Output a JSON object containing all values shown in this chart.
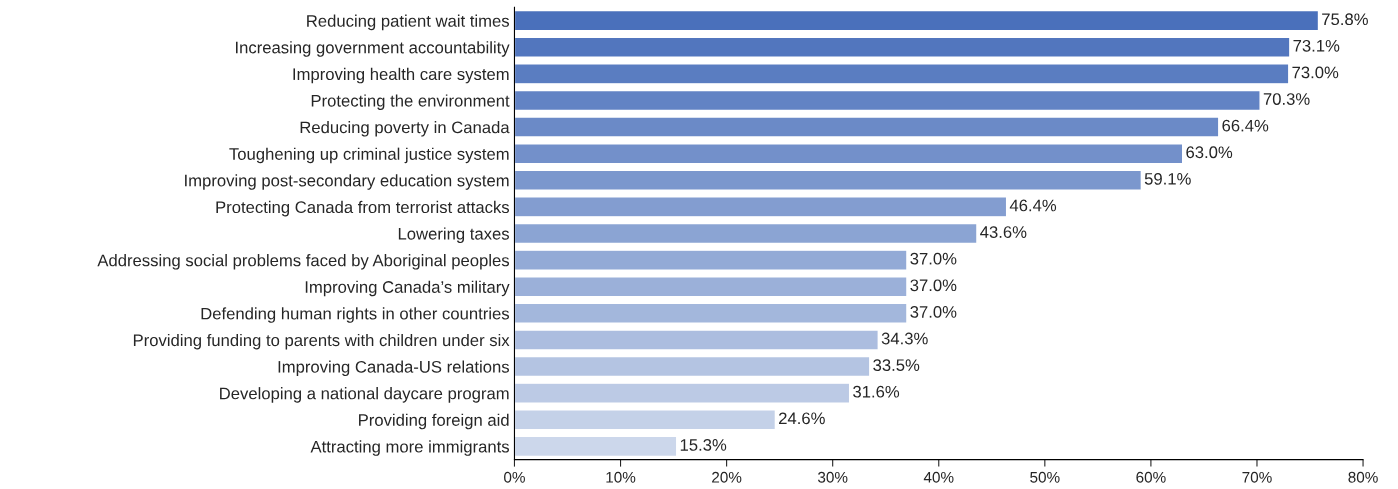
{
  "chart_data": {
    "type": "bar",
    "orientation": "horizontal",
    "categories": [
      "Reducing patient wait times",
      "Increasing government accountability",
      "Improving health care system",
      "Protecting the environment",
      "Reducing poverty in Canada",
      "Toughening up criminal justice system",
      "Improving post-secondary education system",
      "Protecting Canada from terrorist attacks",
      "Lowering taxes",
      "Addressing social problems faced by Aboriginal peoples",
      "Improving Canada’s military",
      "Defending human rights in other countries",
      "Providing funding to parents with children under six",
      "Improving Canada-US relations",
      "Developing a national daycare program",
      "Providing foreign aid",
      "Attracting more immigrants"
    ],
    "values": [
      75.8,
      73.1,
      73.0,
      70.3,
      66.4,
      63.0,
      59.1,
      46.4,
      43.6,
      37.0,
      37.0,
      37.0,
      34.3,
      33.5,
      31.6,
      24.6,
      15.3
    ],
    "value_labels": [
      "75.8%",
      "73.1%",
      "73.0%",
      "70.3%",
      "66.4%",
      "63.0%",
      "59.1%",
      "46.4%",
      "43.6%",
      "37.0%",
      "37.0%",
      "37.0%",
      "34.3%",
      "33.5%",
      "31.6%",
      "24.6%",
      "15.3%"
    ],
    "colors": [
      "#4a70bb",
      "#5276be",
      "#5a7dc1",
      "#6283c4",
      "#6b8ac7",
      "#7390ca",
      "#7b97cd",
      "#839dd0",
      "#8ba4d3",
      "#93aad6",
      "#9bb0d9",
      "#a3b7dc",
      "#acbddf",
      "#b4c4e2",
      "#bccae5",
      "#c4d1e8",
      "#ccd7eb"
    ],
    "xlim": [
      0,
      80
    ],
    "xticks": [
      {
        "value": 0,
        "label": "0%"
      },
      {
        "value": 10,
        "label": "10%"
      },
      {
        "value": 20,
        "label": "20%"
      },
      {
        "value": 30,
        "label": "30%"
      },
      {
        "value": 40,
        "label": "40%"
      },
      {
        "value": 50,
        "label": "50%"
      },
      {
        "value": 60,
        "label": "60%"
      },
      {
        "value": 70,
        "label": "70%"
      },
      {
        "value": 80,
        "label": "80%"
      }
    ],
    "grid": false,
    "legend": false
  }
}
